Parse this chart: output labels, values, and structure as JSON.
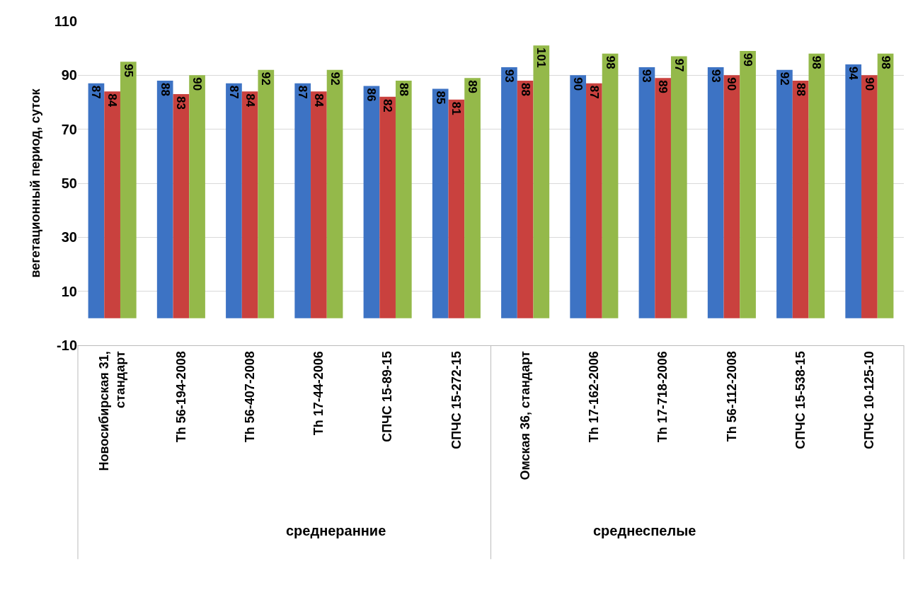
{
  "chart_data": {
    "type": "bar",
    "ylabel": "вегетационный период, суток",
    "categories": [
      "Новосибирская 31, стандарт",
      "Th 56-194-2008",
      "Th 56-407-2008",
      "Th 17-44-2006",
      "СПЧС 15-89-15",
      "СПЧС 15-272-15",
      "Омская 36, стандарт",
      "Th 17-162-2006",
      "Th 17-718-2006",
      "Th 56-112-2008",
      "СПЧС 15-538-15",
      "СПЧС 10-125-10"
    ],
    "series": [
      {
        "color": "#3d73c4",
        "values": [
          87,
          88,
          87,
          87,
          86,
          85,
          93,
          90,
          93,
          93,
          92,
          94
        ]
      },
      {
        "color": "#c9413e",
        "values": [
          84,
          83,
          84,
          84,
          82,
          81,
          88,
          87,
          89,
          90,
          88,
          90
        ]
      },
      {
        "color": "#94b94a",
        "values": [
          95,
          90,
          92,
          92,
          88,
          89,
          101,
          98,
          97,
          99,
          98,
          98
        ]
      }
    ],
    "ylim": [
      -10,
      110
    ],
    "yticks": [
      -10,
      10,
      30,
      50,
      70,
      90,
      110
    ],
    "grid": "y",
    "data_labels": true,
    "annotations": [
      "среднеранние",
      "среднеспелые"
    ]
  }
}
